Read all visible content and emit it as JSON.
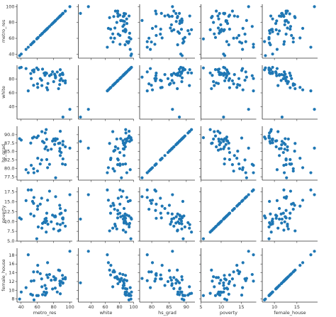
{
  "chart_data": {
    "type": "pairplot",
    "color": "#1f77b4",
    "variables": [
      {
        "name": "metro_res",
        "lim": [
          35,
          103
        ],
        "xticks": [
          40,
          60,
          80,
          100
        ],
        "yticks": [
          40,
          60,
          80,
          100
        ],
        "values": [
          55.4,
          65.6,
          88.2,
          52.5,
          94.4,
          84.5,
          87.7,
          80.1,
          100,
          89.3,
          71.6,
          91.5,
          66.4,
          87.8,
          70.8,
          61.1,
          71.4,
          55.8,
          72.6,
          40.2,
          86.1,
          91.4,
          82.3,
          70.9,
          48.8,
          69.4,
          54.1,
          69.7,
          91.5,
          59.3,
          94.4,
          75.0,
          87.5,
          60.2,
          55.9,
          81.3,
          65.3,
          78.7,
          77.1,
          90.9,
          60.5,
          51.9,
          63.6,
          82.5,
          88.2,
          38.2,
          73.0,
          82.0,
          46.1,
          68.3
        ]
      },
      {
        "name": "white",
        "lim": [
          22,
          100
        ],
        "xticks": [
          40,
          60,
          80,
          100
        ],
        "yticks": [
          40,
          60,
          80
        ],
        "values": [
          71.0,
          70.6,
          86.5,
          80.8,
          77.5,
          90.2,
          85.4,
          76.3,
          36.2,
          80.6,
          67.5,
          25.0,
          94.4,
          77.9,
          88.3,
          93.7,
          88.2,
          90.4,
          64.4,
          97.0,
          66.1,
          86.5,
          81.8,
          88.8,
          62.9,
          85.4,
          92.4,
          89.1,
          77.5,
          96.1,
          74.4,
          84.9,
          72.0,
          73.1,
          93.4,
          87.1,
          78.3,
          90.5,
          86.5,
          88.6,
          67.9,
          88.0,
          80.7,
          82.8,
          93.6,
          96.2,
          73.6,
          84.9,
          95.2,
          88.4
        ]
      },
      {
        "name": "hs_grad",
        "lim": [
          76.5,
          92.5
        ],
        "xticks": [
          80,
          85,
          90
        ],
        "yticks": [
          {
            "value": 77.5,
            "label": "77.5"
          },
          {
            "value": 80,
            "label": "80.0"
          },
          {
            "value": 82.5,
            "label": "82.5"
          },
          {
            "value": 85,
            "label": "85.0"
          },
          {
            "value": 87.5,
            "label": "87.5"
          },
          {
            "value": 90,
            "label": "90.0"
          }
        ],
        "values": [
          79.9,
          90.9,
          83.8,
          80.9,
          81.1,
          88.7,
          87.5,
          88.7,
          86.0,
          84.7,
          82.6,
          88.0,
          88.0,
          85.9,
          86.4,
          89.6,
          88.6,
          78.7,
          80.2,
          88.4,
          87.4,
          87.0,
          88.8,
          91.5,
          78.7,
          85.8,
          89.0,
          90.5,
          82.8,
          89.1,
          86.4,
          81.2,
          85.1,
          79.2,
          89.3,
          87.1,
          82.5,
          88.1,
          85.7,
          81.3,
          83.0,
          87.5,
          81.3,
          77.2,
          91.0,
          88.8,
          85.4,
          88.2,
          79.6,
          87.6
        ]
      },
      {
        "name": "poverty",
        "lim": [
          5,
          18.7
        ],
        "xticks": [
          5,
          10,
          15
        ],
        "yticks": [
          {
            "value": 5,
            "label": "5.0"
          },
          7.5,
          {
            "value": 10,
            "label": "10.0"
          },
          12.5,
          {
            "value": 15,
            "label": "15.0"
          },
          17.5
        ],
        "values": [
          14.6,
          8.3,
          13.3,
          18.0,
          12.8,
          9.4,
          7.8,
          8.1,
          16.8,
          12.1,
          12.1,
          10.6,
          9.5,
          11.9,
          10.8,
          8.6,
          10.1,
          16.1,
          15.4,
          10.6,
          7.6,
          9.6,
          11.2,
          7.3,
          18.0,
          10.6,
          15.1,
          9.7,
          10.9,
          5.6,
          8.8,
          17.7,
          14.1,
          13.1,
          11.4,
          11.2,
          15.9,
          11.6,
          9.9,
          10.8,
          13.9,
          11.9,
          14.4,
          16.3,
          9.2,
          10.9,
          9.3,
          11.4,
          15.3,
          9.9
        ]
      },
      {
        "name": "female_house",
        "lim": [
          7.3,
          19.6
        ],
        "xticks": [
          10,
          15
        ],
        "yticks": [
          8,
          10,
          12,
          14,
          16,
          18
        ],
        "values": [
          14.2,
          10.8,
          11.1,
          12.1,
          12.6,
          9.6,
          12.1,
          13.1,
          18.9,
          12.0,
          13.5,
          11.7,
          9.0,
          11.5,
          10.4,
          8.8,
          9.5,
          12.2,
          16.3,
          9.6,
          14.6,
          11.6,
          12.4,
          9.3,
          18.1,
          11.1,
          8.9,
          8.9,
          12.6,
          8.8,
          12.9,
          13.6,
          14.5,
          14.2,
          7.8,
          12.4,
          12.6,
          10.3,
          12.3,
          13.4,
          15.7,
          9.1,
          13.8,
          12.7,
          9.2,
          8.0,
          12.9,
          10.5,
          10.6,
          9.6
        ]
      }
    ]
  }
}
